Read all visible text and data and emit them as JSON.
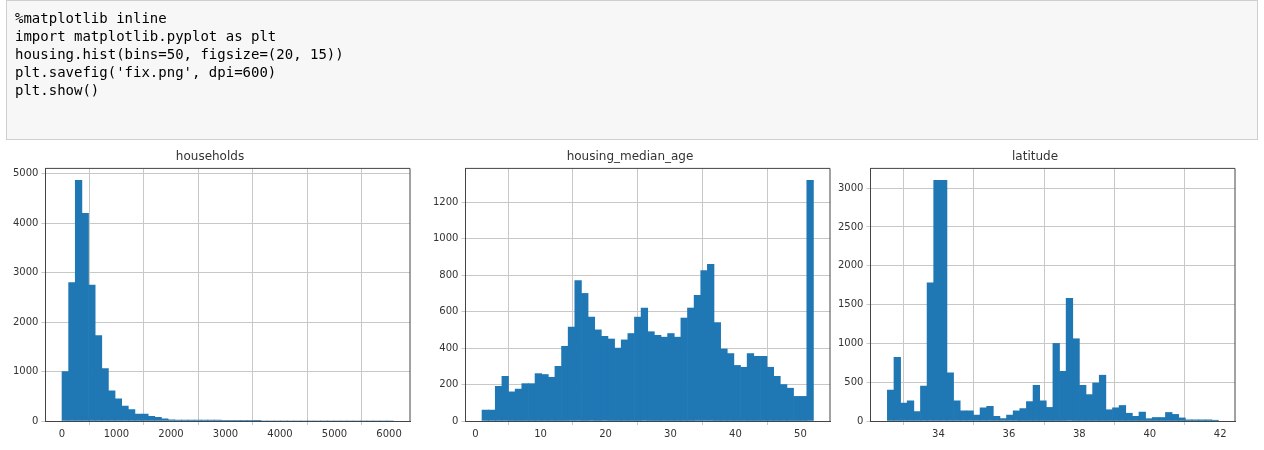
{
  "chart_data": [
    {
      "type": "other",
      "annotations": [
        "%matplotlib inline",
        "import matplotlib.pyplot as plt",
        "housing.hist(bins=50, figsize=(20, 15))",
        "plt.savefig('fix.png', dpi=600)",
        "plt.show()"
      ]
    },
    {
      "type": "histogram",
      "title": "households",
      "color": "#1f77b4",
      "grid": true,
      "bins": [
        1,
        122.6,
        244.2,
        365.8,
        487.4,
        609,
        730.6,
        852.2,
        973.8,
        1095.4,
        1217,
        1338.6,
        1460.2,
        1581.8,
        1703.4,
        1825,
        1946.6,
        2068.2,
        2189.8,
        2311.4,
        2433,
        2554.6,
        2676.2,
        2797.8,
        2919.4,
        3041,
        3162.6,
        3284.2,
        3405.8,
        3527.4,
        3649,
        3770.6,
        3892.2,
        4013.8,
        4135.4,
        4257,
        4378.6,
        4500.2,
        4621.8,
        4743.4,
        4865,
        4986.6,
        5108.2,
        5229.8,
        5351.4,
        5473,
        5594.6,
        5716.2,
        5837.8,
        5959.4,
        6081
      ],
      "values": [
        1000,
        2800,
        4870,
        4200,
        2750,
        1730,
        1060,
        610,
        450,
        300,
        230,
        140,
        140,
        95,
        75,
        45,
        25,
        20,
        20,
        20,
        20,
        20,
        20,
        20,
        5,
        5,
        5,
        5,
        5,
        5,
        0,
        0,
        0,
        0,
        0,
        0,
        0,
        0,
        0,
        0,
        0,
        0,
        0,
        0,
        0,
        0,
        0,
        0,
        0,
        0
      ],
      "xlim": [
        -303,
        6385
      ],
      "ylim": [
        0,
        5110
      ],
      "xticks": [
        0,
        1000,
        2000,
        3000,
        4000,
        5000,
        6000
      ],
      "yticks": [
        0,
        1000,
        2000,
        3000,
        4000,
        5000
      ]
    },
    {
      "type": "histogram",
      "title": "housing_median_age",
      "color": "#1f77b4",
      "grid": true,
      "bins": [
        1,
        2.02,
        3.04,
        4.06,
        5.08,
        6.1,
        7.12,
        8.14,
        9.16,
        10.18,
        11.2,
        12.22,
        13.24,
        14.26,
        15.28,
        16.3,
        17.32,
        18.34,
        19.36,
        20.38,
        21.4,
        22.42,
        23.44,
        24.46,
        25.48,
        26.5,
        27.52,
        28.54,
        29.56,
        30.58,
        31.6,
        32.62,
        33.64,
        34.66,
        35.68,
        36.7,
        37.72,
        38.74,
        39.76,
        40.78,
        41.8,
        42.82,
        43.84,
        44.86,
        45.88,
        46.9,
        47.92,
        48.94,
        49.96,
        50.98,
        52
      ],
      "values": [
        60,
        60,
        190,
        245,
        160,
        175,
        205,
        205,
        260,
        255,
        240,
        300,
        410,
        515,
        770,
        700,
        570,
        500,
        465,
        450,
        400,
        445,
        480,
        570,
        620,
        490,
        470,
        460,
        480,
        460,
        565,
        620,
        690,
        825,
        860,
        540,
        395,
        370,
        305,
        295,
        370,
        355,
        355,
        295,
        245,
        200,
        180,
        135,
        135,
        1320
      ],
      "xlim": [
        -1.55,
        54.55
      ],
      "ylim": [
        0,
        1386
      ],
      "xticks": [
        0,
        10,
        20,
        30,
        40,
        50
      ],
      "yticks": [
        0,
        200,
        400,
        600,
        800,
        1000,
        1200
      ]
    },
    {
      "type": "histogram",
      "title": "latitude",
      "color": "#1f77b4",
      "grid": true,
      "bins": [
        32.55,
        32.738,
        32.926,
        33.114,
        33.302,
        33.49,
        33.678,
        33.866,
        34.054,
        34.242,
        34.43,
        34.618,
        34.806,
        34.994,
        35.182,
        35.37,
        35.558,
        35.746,
        35.934,
        36.122,
        36.31,
        36.498,
        36.686,
        36.874,
        37.062,
        37.25,
        37.438,
        37.626,
        37.814,
        38.002,
        38.19,
        38.378,
        38.566,
        38.754,
        38.942,
        39.13,
        39.318,
        39.506,
        39.694,
        39.882,
        40.07,
        40.258,
        40.446,
        40.634,
        40.822,
        41.01,
        41.198,
        41.386,
        41.574,
        41.762,
        41.95
      ],
      "values": [
        400,
        820,
        230,
        260,
        120,
        450,
        1780,
        3100,
        3100,
        620,
        260,
        130,
        130,
        75,
        170,
        190,
        60,
        30,
        75,
        130,
        160,
        250,
        460,
        260,
        175,
        1000,
        640,
        1580,
        1060,
        460,
        340,
        490,
        590,
        145,
        170,
        200,
        100,
        60,
        115,
        30,
        45,
        45,
        110,
        85,
        40,
        15,
        15,
        15,
        15,
        10
      ],
      "xlim": [
        32.07,
        42.42
      ],
      "ylim": [
        0,
        3255
      ],
      "xticks": [
        34,
        36,
        38,
        40,
        42
      ],
      "yticks": [
        0,
        500,
        1000,
        1500,
        2000,
        2500,
        3000
      ]
    }
  ]
}
